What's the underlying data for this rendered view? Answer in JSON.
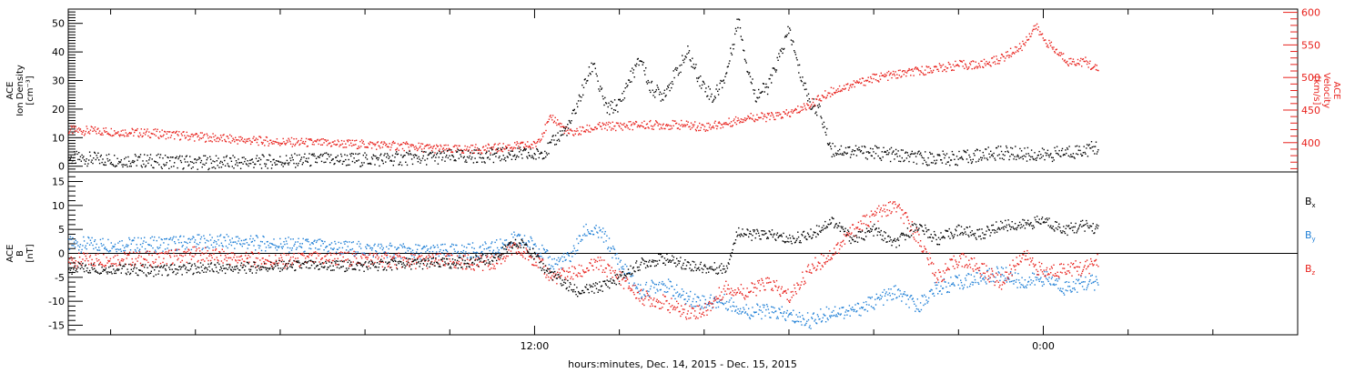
{
  "xlabel": "hours:minutes, Dec. 14, 2015 - Dec. 15, 2015",
  "colors": {
    "black": "#000000",
    "red": "#e8221d",
    "blue": "#1f7fd6"
  },
  "chart_data": [
    {
      "type": "scatter",
      "panel": "top",
      "ylabel_left": [
        "ACE",
        "Ion Density",
        "[cm⁻³]"
      ],
      "ylabel_right": [
        "ACE",
        "Velocity",
        "[km/s]"
      ],
      "x_unit": "hours from 2015-12-14 00:00",
      "xlim": [
        1.0,
        30.0
      ],
      "x_ticks": [
        {
          "x": 12,
          "label": "12:00"
        },
        {
          "x": 24,
          "label": "0:00"
        }
      ],
      "ylim_left": [
        -2,
        55
      ],
      "yticks_left": [
        0,
        10,
        20,
        30,
        40,
        50
      ],
      "ylim_right": [
        355,
        605
      ],
      "yticks_right": [
        400,
        450,
        500,
        550,
        600
      ],
      "series": [
        {
          "axis": "left",
          "color": "black",
          "points": [
            [
              1.0,
              3
            ],
            [
              2.0,
              2.5
            ],
            [
              3.0,
              2
            ],
            [
              4.0,
              1.5
            ],
            [
              5.0,
              1.5
            ],
            [
              6.0,
              2
            ],
            [
              7.0,
              2.5
            ],
            [
              8.0,
              2.5
            ],
            [
              9.0,
              3
            ],
            [
              10.0,
              3.5
            ],
            [
              11.0,
              4
            ],
            [
              11.5,
              4.5
            ],
            [
              12.0,
              4
            ],
            [
              12.3,
              6
            ],
            [
              12.5,
              10
            ],
            [
              12.8,
              14
            ],
            [
              13.0,
              22
            ],
            [
              13.2,
              30
            ],
            [
              13.4,
              37
            ],
            [
              13.5,
              28
            ],
            [
              13.7,
              20
            ],
            [
              14.0,
              22
            ],
            [
              14.2,
              30
            ],
            [
              14.5,
              38
            ],
            [
              14.7,
              28
            ],
            [
              15.0,
              25
            ],
            [
              15.3,
              32
            ],
            [
              15.6,
              40
            ],
            [
              15.9,
              30
            ],
            [
              16.2,
              24
            ],
            [
              16.5,
              32
            ],
            [
              16.8,
              52
            ],
            [
              17.0,
              35
            ],
            [
              17.2,
              25
            ],
            [
              17.5,
              28
            ],
            [
              17.8,
              40
            ],
            [
              18.0,
              48
            ],
            [
              18.2,
              35
            ],
            [
              18.5,
              22
            ],
            [
              18.7,
              20
            ],
            [
              18.9,
              10
            ],
            [
              19.0,
              6
            ],
            [
              20.0,
              5
            ],
            [
              21.0,
              3
            ],
            [
              22.0,
              3
            ],
            [
              23.0,
              5
            ],
            [
              24.0,
              4
            ],
            [
              25.0,
              6
            ],
            [
              25.3,
              7
            ]
          ]
        },
        {
          "axis": "right",
          "color": "red",
          "points": [
            [
              1.0,
              420
            ],
            [
              2.0,
              418
            ],
            [
              3.0,
              415
            ],
            [
              4.0,
              410
            ],
            [
              5.0,
              405
            ],
            [
              6.0,
              402
            ],
            [
              7.0,
              400
            ],
            [
              8.0,
              398
            ],
            [
              9.0,
              395
            ],
            [
              10.0,
              390
            ],
            [
              11.0,
              392
            ],
            [
              11.5,
              395
            ],
            [
              12.0,
              397
            ],
            [
              12.4,
              440
            ],
            [
              12.8,
              415
            ],
            [
              13.5,
              425
            ],
            [
              14.5,
              428
            ],
            [
              15.5,
              428
            ],
            [
              16.0,
              425
            ],
            [
              16.5,
              430
            ],
            [
              17.0,
              440
            ],
            [
              17.5,
              440
            ],
            [
              18.0,
              445
            ],
            [
              18.5,
              460
            ],
            [
              19.0,
              480
            ],
            [
              19.5,
              490
            ],
            [
              20.0,
              500
            ],
            [
              20.5,
              505
            ],
            [
              21.0,
              510
            ],
            [
              21.5,
              515
            ],
            [
              22.0,
              520
            ],
            [
              22.5,
              520
            ],
            [
              23.0,
              530
            ],
            [
              23.5,
              550
            ],
            [
              23.8,
              580
            ],
            [
              24.0,
              560
            ],
            [
              24.3,
              540
            ],
            [
              24.6,
              525
            ],
            [
              25.0,
              525
            ],
            [
              25.3,
              510
            ]
          ]
        }
      ]
    },
    {
      "type": "scatter",
      "panel": "bottom",
      "ylabel_left": [
        "ACE",
        "B",
        "[nT]"
      ],
      "x_unit": "hours from 2015-12-14 00:00",
      "xlim": [
        1.0,
        30.0
      ],
      "ylim": [
        -17,
        17
      ],
      "yticks": [
        -15,
        -10,
        -5,
        0,
        5,
        10,
        15
      ],
      "legend": [
        {
          "label": "B",
          "sub": "x",
          "color": "black"
        },
        {
          "label": "B",
          "sub": "y",
          "color": "blue"
        },
        {
          "label": "B",
          "sub": "z",
          "color": "red"
        }
      ],
      "series": [
        {
          "name": "Bx",
          "color": "black",
          "points": [
            [
              1.0,
              -3
            ],
            [
              2.0,
              -3
            ],
            [
              3.0,
              -3.5
            ],
            [
              4.0,
              -3
            ],
            [
              5.0,
              -3
            ],
            [
              6.0,
              -2.5
            ],
            [
              7.0,
              -2.5
            ],
            [
              8.0,
              -2.5
            ],
            [
              9.0,
              -2
            ],
            [
              10.0,
              -2
            ],
            [
              11.0,
              -1
            ],
            [
              11.5,
              2
            ],
            [
              11.8,
              2
            ],
            [
              12.1,
              -2
            ],
            [
              12.5,
              -5
            ],
            [
              13.0,
              -8
            ],
            [
              13.5,
              -7
            ],
            [
              14.0,
              -5
            ],
            [
              14.5,
              -2
            ],
            [
              15.0,
              -1
            ],
            [
              15.5,
              -2
            ],
            [
              16.0,
              -3
            ],
            [
              16.5,
              -3
            ],
            [
              16.8,
              5
            ],
            [
              17.0,
              4
            ],
            [
              17.5,
              4
            ],
            [
              18.0,
              3
            ],
            [
              18.5,
              4
            ],
            [
              19.0,
              7
            ],
            [
              19.5,
              3
            ],
            [
              20.0,
              5
            ],
            [
              20.5,
              2
            ],
            [
              21.0,
              6
            ],
            [
              21.5,
              3
            ],
            [
              22.0,
              5
            ],
            [
              22.5,
              4
            ],
            [
              23.0,
              6
            ],
            [
              23.5,
              6
            ],
            [
              24.0,
              7
            ],
            [
              24.5,
              5
            ],
            [
              25.0,
              6
            ],
            [
              25.3,
              5
            ]
          ]
        },
        {
          "name": "By",
          "color": "blue",
          "points": [
            [
              1.0,
              2
            ],
            [
              2.0,
              2
            ],
            [
              3.0,
              2
            ],
            [
              4.0,
              2.5
            ],
            [
              5.0,
              2.5
            ],
            [
              6.0,
              2
            ],
            [
              7.0,
              1.5
            ],
            [
              8.0,
              1
            ],
            [
              9.0,
              0.5
            ],
            [
              10.0,
              0.5
            ],
            [
              11.0,
              1
            ],
            [
              11.5,
              3
            ],
            [
              12.0,
              2
            ],
            [
              12.4,
              -2
            ],
            [
              12.8,
              -1
            ],
            [
              13.2,
              5
            ],
            [
              13.6,
              4
            ],
            [
              14.0,
              -2
            ],
            [
              14.5,
              -8
            ],
            [
              15.0,
              -6
            ],
            [
              15.5,
              -9
            ],
            [
              16.0,
              -10
            ],
            [
              16.5,
              -10
            ],
            [
              17.0,
              -12
            ],
            [
              17.5,
              -12
            ],
            [
              18.0,
              -13
            ],
            [
              18.5,
              -14
            ],
            [
              19.0,
              -12
            ],
            [
              19.5,
              -12
            ],
            [
              20.0,
              -10
            ],
            [
              20.5,
              -8
            ],
            [
              21.0,
              -11
            ],
            [
              21.5,
              -7
            ],
            [
              22.0,
              -6
            ],
            [
              22.5,
              -5
            ],
            [
              23.0,
              -4
            ],
            [
              23.5,
              -6
            ],
            [
              24.0,
              -5
            ],
            [
              24.5,
              -7
            ],
            [
              25.0,
              -6
            ],
            [
              25.3,
              -6
            ]
          ]
        },
        {
          "name": "Bz",
          "color": "red",
          "points": [
            [
              1.0,
              -1.5
            ],
            [
              2.0,
              -1
            ],
            [
              3.0,
              -1
            ],
            [
              4.0,
              0
            ],
            [
              5.0,
              -1
            ],
            [
              6.0,
              -1.5
            ],
            [
              7.0,
              -1
            ],
            [
              8.0,
              -1
            ],
            [
              9.0,
              -1.5
            ],
            [
              10.0,
              -1.5
            ],
            [
              11.0,
              -2
            ],
            [
              11.5,
              1
            ],
            [
              12.0,
              -1
            ],
            [
              12.4,
              -5
            ],
            [
              12.8,
              -4
            ],
            [
              13.0,
              -4
            ],
            [
              13.5,
              -2
            ],
            [
              14.0,
              -5
            ],
            [
              14.5,
              -9
            ],
            [
              15.0,
              -10
            ],
            [
              15.5,
              -12
            ],
            [
              16.0,
              -12
            ],
            [
              16.5,
              -7
            ],
            [
              17.0,
              -8
            ],
            [
              17.5,
              -6
            ],
            [
              18.0,
              -9
            ],
            [
              18.5,
              -3
            ],
            [
              19.0,
              0
            ],
            [
              19.5,
              5
            ],
            [
              20.0,
              8
            ],
            [
              20.5,
              10
            ],
            [
              21.0,
              4
            ],
            [
              21.5,
              -5
            ],
            [
              22.0,
              -1
            ],
            [
              22.5,
              -3
            ],
            [
              23.0,
              -6
            ],
            [
              23.5,
              0
            ],
            [
              24.0,
              -4
            ],
            [
              24.5,
              -3
            ],
            [
              25.0,
              -3
            ],
            [
              25.3,
              -1
            ]
          ]
        }
      ]
    }
  ]
}
